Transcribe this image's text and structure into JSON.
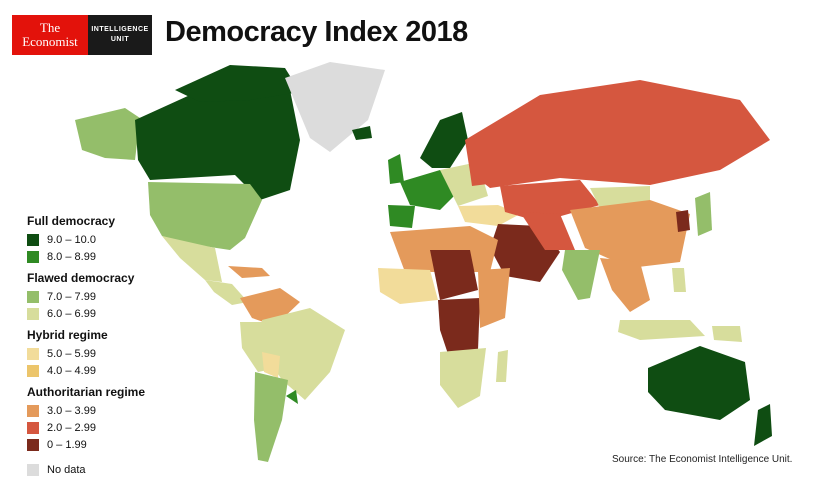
{
  "header": {
    "logo_line1": "The",
    "logo_line2": "Economist",
    "eiu_line1": "INTELLIGENCE",
    "eiu_line2": "UNIT",
    "title": "Democracy Index 2018"
  },
  "legend": {
    "groups": [
      {
        "heading": "Full democracy",
        "items": [
          {
            "label": "9.0 – 10.0",
            "color": "#0f4d12"
          },
          {
            "label": "8.0 – 8.99",
            "color": "#2f8a23"
          }
        ]
      },
      {
        "heading": "Flawed democracy",
        "items": [
          {
            "label": "7.0 – 7.99",
            "color": "#94be6a"
          },
          {
            "label": "6.0 – 6.99",
            "color": "#d7dd9c"
          }
        ]
      },
      {
        "heading": "Hybrid regime",
        "items": [
          {
            "label": "5.0 – 5.99",
            "color": "#f2dc9a"
          },
          {
            "label": "4.0 – 4.99",
            "color": "#ecc56b"
          }
        ]
      },
      {
        "heading": "Authoritarian regime",
        "items": [
          {
            "label": "3.0 – 3.99",
            "color": "#e49a5b"
          },
          {
            "label": "2.0 – 2.99",
            "color": "#d5573f"
          },
          {
            "label": "0 – 1.99",
            "color": "#7b2a1c"
          }
        ]
      }
    ],
    "nodata": {
      "label": "No data",
      "color": "#dcdcdc"
    }
  },
  "source": "Source: The Economist Intelligence Unit."
}
